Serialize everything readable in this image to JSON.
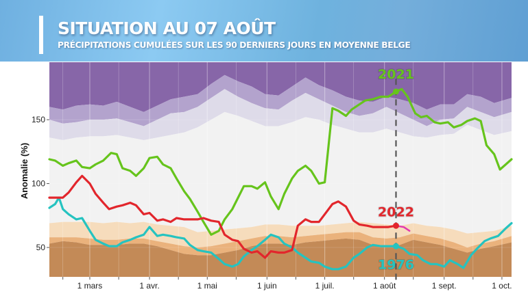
{
  "header": {
    "title": "SITUATION AU 07 AOÛT",
    "subtitle": "PRÉCIPITATIONS CUMULÉES SUR LES 90 DERNIERS JOURS EN MOYENNE BELGE"
  },
  "chart_data": {
    "type": "line",
    "title": "SITUATION AU 07 AOÛT",
    "subtitle": "PRÉCIPITATIONS CUMULÉES SUR LES 90 DERNIERS JOURS EN MOYENNE BELGE",
    "xlabel": "",
    "ylabel": "Anomalie (%)",
    "x_unit": "days since 1 Feb",
    "xlim": [
      7,
      247
    ],
    "ylim": [
      27,
      195
    ],
    "yticks": [
      50,
      100,
      150
    ],
    "xticks": [
      {
        "day": 28,
        "label": "1 mars"
      },
      {
        "day": 59,
        "label": "1 avr."
      },
      {
        "day": 89,
        "label": "1 mai"
      },
      {
        "day": 120,
        "label": "1 juin"
      },
      {
        "day": 150,
        "label": "1 juil."
      },
      {
        "day": 181,
        "label": "1 août"
      },
      {
        "day": 212,
        "label": "1 sept."
      },
      {
        "day": 242,
        "label": "1 oct."
      }
    ],
    "minor_xticks": [
      14,
      43,
      74,
      104,
      135,
      165,
      196,
      227
    ],
    "current_date": {
      "day": 187,
      "label": "07 août"
    },
    "grid": true,
    "colors": {
      "band_very_wet": "#8766a8",
      "band_wet": "#b3a3cd",
      "band_mod_wet": "#dedbe9",
      "band_normal": "#f2f2f2",
      "band_mod_dry": "#f6dcbc",
      "band_dry": "#eab27c",
      "band_very_dry": "#c38a57",
      "y2021": "#66c41c",
      "y2022": "#e2262c",
      "y2022_forecast": "#e23ab0",
      "y1976": "#25c3c0"
    },
    "bands": {
      "x": [
        7,
        14,
        21,
        28,
        35,
        42,
        49,
        56,
        63,
        70,
        77,
        84,
        91,
        98,
        105,
        112,
        119,
        126,
        133,
        140,
        147,
        154,
        161,
        168,
        175,
        182,
        189,
        196,
        203,
        210,
        217,
        224,
        231,
        238,
        247
      ],
      "p90": [
        160,
        158,
        161,
        162,
        161,
        164,
        160,
        156,
        161,
        166,
        168,
        170,
        178,
        185,
        180,
        176,
        170,
        169,
        176,
        183,
        177,
        173,
        168,
        165,
        164,
        168,
        166,
        163,
        158,
        162,
        162,
        170,
        168,
        163,
        167
      ],
      "p80": [
        150,
        147,
        148,
        150,
        150,
        151,
        148,
        145,
        150,
        155,
        156,
        160,
        167,
        174,
        168,
        163,
        159,
        158,
        165,
        171,
        166,
        161,
        156,
        153,
        155,
        160,
        155,
        150,
        145,
        150,
        151,
        160,
        156,
        152,
        156
      ],
      "p70": [
        136,
        134,
        136,
        137,
        137,
        138,
        136,
        134,
        136,
        138,
        140,
        144,
        150,
        156,
        153,
        149,
        145,
        145,
        148,
        152,
        150,
        146,
        143,
        140,
        140,
        143,
        140,
        137,
        136,
        138,
        139,
        146,
        142,
        138,
        141
      ],
      "p30": [
        69,
        70,
        70,
        70,
        69,
        70,
        69,
        70,
        68,
        67,
        66,
        62,
        63,
        64,
        65,
        66,
        68,
        68,
        67,
        67,
        67,
        68,
        69,
        70,
        69,
        68,
        67,
        69,
        67,
        66,
        64,
        61,
        62,
        63,
        67
      ],
      "p20": [
        58,
        58,
        58,
        57,
        56,
        56,
        57,
        57,
        55,
        53,
        51,
        50,
        51,
        53,
        55,
        57,
        59,
        59,
        58,
        59,
        60,
        61,
        62,
        62,
        58,
        57,
        58,
        61,
        59,
        57,
        54,
        50,
        53,
        55,
        59
      ],
      "p10": [
        53,
        55,
        54,
        52,
        52,
        52,
        53,
        53,
        51,
        48,
        45,
        44,
        44,
        46,
        48,
        51,
        53,
        53,
        52,
        54,
        55,
        56,
        57,
        56,
        52,
        51,
        52,
        56,
        54,
        52,
        49,
        46,
        49,
        51,
        54
      ]
    },
    "series": [
      {
        "name": "2021",
        "label_day": 187,
        "label_value": 186,
        "marker_day": 187,
        "marker_value": 172,
        "x": [
          7,
          10,
          14,
          17,
          21,
          24,
          28,
          31,
          35,
          39,
          42,
          45,
          49,
          52,
          56,
          59,
          63,
          66,
          70,
          73,
          77,
          80,
          84,
          87,
          91,
          95,
          98,
          102,
          105,
          108,
          112,
          115,
          119,
          122,
          126,
          129,
          133,
          136,
          140,
          143,
          147,
          150,
          154,
          157,
          161,
          164,
          168,
          171,
          175,
          179,
          183,
          187,
          190,
          193,
          197,
          200,
          203,
          207,
          210,
          214,
          217,
          221,
          224,
          228,
          231,
          234,
          238,
          241,
          244,
          247
        ],
        "values": [
          119,
          118,
          114,
          116,
          118,
          113,
          112,
          115,
          118,
          124,
          123,
          112,
          110,
          106,
          112,
          120,
          121,
          115,
          112,
          104,
          94,
          88,
          78,
          70,
          60,
          63,
          72,
          80,
          89,
          98,
          98,
          96,
          101,
          90,
          80,
          92,
          104,
          110,
          114,
          110,
          100,
          101,
          159,
          157,
          153,
          158,
          162,
          165,
          166,
          168,
          168,
          172,
          174,
          168,
          155,
          152,
          153,
          148,
          147,
          148,
          144,
          146,
          149,
          151,
          149,
          130,
          123,
          111,
          115,
          119
        ]
      },
      {
        "name": "2022",
        "label_day": 187,
        "label_value": 78,
        "marker_day": 187,
        "marker_value": 67,
        "x": [
          7,
          11,
          14,
          17,
          21,
          24,
          28,
          31,
          35,
          38,
          42,
          45,
          49,
          52,
          56,
          59,
          63,
          66,
          70,
          73,
          77,
          80,
          84,
          87,
          91,
          95,
          98,
          102,
          105,
          108,
          112,
          115,
          119,
          122,
          126,
          129,
          133,
          136,
          140,
          143,
          147,
          150,
          154,
          157,
          161,
          165,
          168,
          172,
          175,
          179,
          183,
          187
        ],
        "values": [
          89,
          89,
          89,
          93,
          101,
          106,
          100,
          92,
          85,
          80,
          82,
          83,
          85,
          83,
          76,
          77,
          71,
          72,
          70,
          73,
          72,
          72,
          72,
          73,
          71,
          70,
          60,
          56,
          55,
          49,
          46,
          47,
          42,
          47,
          46,
          46,
          48,
          67,
          72,
          70,
          70,
          76,
          84,
          86,
          82,
          71,
          68,
          67,
          66,
          66,
          66,
          67
        ]
      },
      {
        "name": "2022 (prévision)",
        "x": [
          187,
          191,
          194
        ],
        "values": [
          67,
          66,
          63
        ]
      },
      {
        "name": "1976",
        "label_day": 187,
        "label_value": 37,
        "marker_day": 187,
        "marker_value": 51,
        "x": [
          7,
          10,
          12,
          14,
          17,
          21,
          24,
          28,
          31,
          35,
          38,
          42,
          45,
          49,
          52,
          56,
          59,
          63,
          66,
          70,
          73,
          77,
          80,
          84,
          87,
          91,
          95,
          98,
          102,
          105,
          108,
          112,
          115,
          119,
          122,
          126,
          129,
          133,
          136,
          140,
          143,
          147,
          150,
          154,
          157,
          161,
          165,
          168,
          172,
          175,
          179,
          183,
          187,
          191,
          194,
          198,
          201,
          205,
          208,
          212,
          215,
          219,
          222,
          226,
          229,
          233,
          236,
          240,
          244,
          247
        ],
        "values": [
          81,
          84,
          89,
          80,
          76,
          72,
          73,
          63,
          56,
          53,
          51,
          51,
          54,
          56,
          58,
          60,
          66,
          59,
          60,
          59,
          58,
          57,
          52,
          48,
          47,
          46,
          41,
          37,
          35,
          37,
          43,
          48,
          51,
          56,
          60,
          58,
          53,
          50,
          46,
          42,
          39,
          38,
          35,
          33,
          33,
          35,
          42,
          45,
          50,
          52,
          51,
          51,
          51,
          49,
          45,
          44,
          40,
          37,
          37,
          35,
          40,
          37,
          34,
          44,
          49,
          55,
          57,
          59,
          65,
          69
        ]
      }
    ]
  }
}
